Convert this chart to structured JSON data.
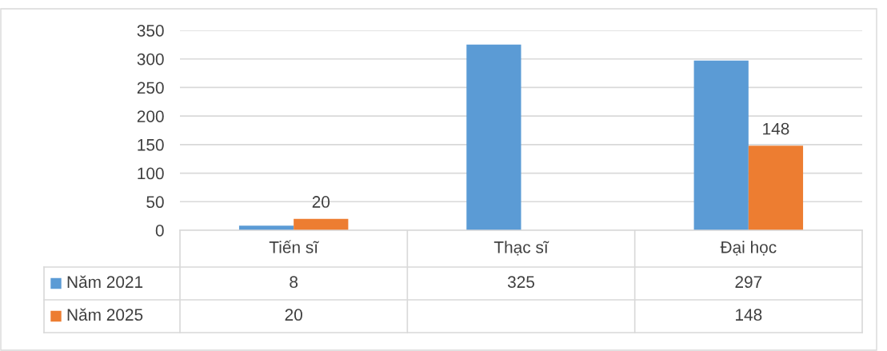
{
  "chart_data": {
    "type": "bar",
    "categories": [
      "Tiến sĩ",
      "Thạc sĩ",
      "Đại học"
    ],
    "series": [
      {
        "name": "Năm 2021",
        "color": "#5b9bd5",
        "values": [
          8,
          325,
          297
        ]
      },
      {
        "name": "Năm 2025",
        "color": "#ed7d31",
        "values": [
          20,
          null,
          148
        ]
      }
    ],
    "annotations": [
      {
        "text": "20",
        "x": "Tiến sĩ",
        "y": 20
      },
      {
        "text": "148",
        "x": "Đại học",
        "y": 148
      }
    ],
    "ylim": [
      0,
      350
    ],
    "yticks": [
      0,
      50,
      100,
      150,
      200,
      250,
      300,
      350
    ],
    "grid": "y",
    "data_labels": true,
    "legend": "bottom"
  }
}
